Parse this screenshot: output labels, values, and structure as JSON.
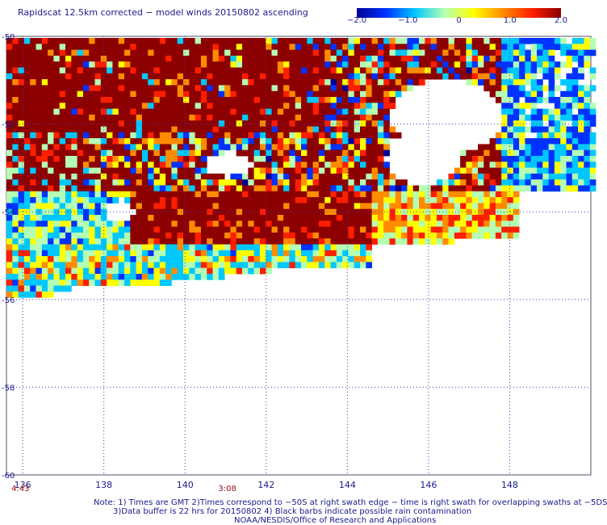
{
  "title": "Rapidscat 12.5km corrected − model winds 20150802 ascending",
  "colorbar": {
    "ticks": [
      {
        "label": "−2.0",
        "value": -2.0
      },
      {
        "label": "−1.0",
        "value": -1.0
      },
      {
        "label": "0",
        "value": 0
      },
      {
        "label": "1.0",
        "value": 1.0
      },
      {
        "label": "2.0",
        "value": 2.0
      }
    ],
    "colors": [
      "#000096",
      "#0032ff",
      "#00c8ff",
      "#b4ffb4",
      "#ffff00",
      "#ff8c00",
      "#ff1e00",
      "#8c0000"
    ]
  },
  "map": {
    "lon_ticks": [
      "136",
      "138",
      "140",
      "142",
      "144",
      "146",
      "148"
    ],
    "lat_ticks": [
      "-50",
      "-52",
      "-54",
      "-56",
      "-58",
      "-60"
    ],
    "lon_range": [
      135.6,
      150.0
    ],
    "lat_range": [
      -60,
      -50
    ],
    "grid": "dotted"
  },
  "times": [
    {
      "label": "4:43",
      "lon": 135.6
    },
    {
      "label": "3:08",
      "lon": 140.7
    }
  ],
  "notes": {
    "line1": "Note: 1) Times are GMT 2)Times correspond to −50S at right swath edge − time is right swath for overlapping swaths at −5DS",
    "line2": "3)Data buffer is 22 hrs for 20150802 4) Black barbs indicate possible rain contamination",
    "line3": "NOAA/NESDIS/Office of Research and Applications"
  }
}
